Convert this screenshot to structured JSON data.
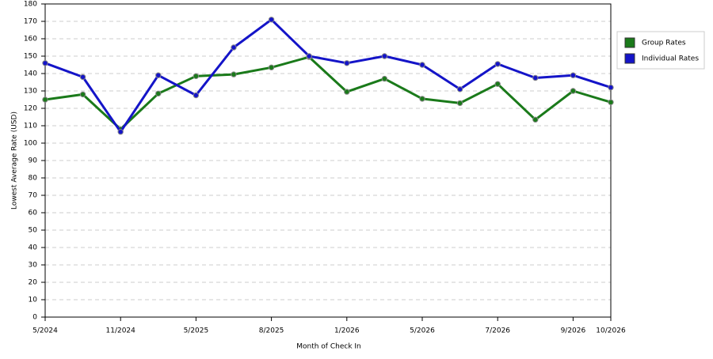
{
  "chart_data": {
    "type": "line",
    "x_label": "Month of Check In",
    "y_label": "Lowest Average Rate (USD)",
    "categories": [
      "5/2024",
      null,
      "11/2024",
      null,
      "5/2025",
      null,
      "8/2025",
      null,
      "1/2026",
      null,
      "5/2026",
      null,
      "7/2026",
      null,
      "9/2026",
      "10/2026"
    ],
    "series": [
      {
        "name": "Group Rates",
        "color": "#1a7a1a",
        "values": [
          125,
          128,
          108,
          128.5,
          138.5,
          139.5,
          143.5,
          149.5,
          129.5,
          137,
          125.5,
          123,
          134,
          113.5,
          130,
          123.5
        ]
      },
      {
        "name": "Individual Rates",
        "color": "#1414c8",
        "values": [
          146,
          138,
          106.5,
          139,
          127.5,
          155,
          171,
          150,
          146,
          150,
          145,
          131,
          145.5,
          137.5,
          139,
          132
        ]
      }
    ],
    "ylim": [
      0,
      180
    ],
    "yticks": [
      0,
      10,
      20,
      30,
      40,
      50,
      60,
      70,
      80,
      90,
      100,
      110,
      120,
      130,
      140,
      150,
      160,
      170,
      180
    ],
    "grid": true,
    "legend": "right"
  }
}
